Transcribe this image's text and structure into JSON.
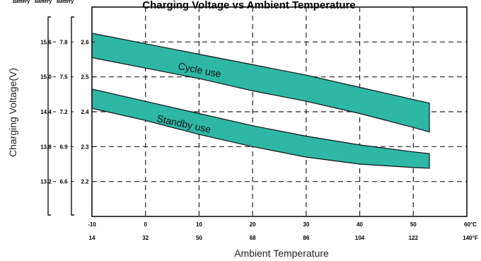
{
  "chart_data": {
    "type": "area",
    "title": "Charging Voltage vs Ambient Temperature",
    "top_left_headers": [
      "Battery",
      "Battery",
      "Battery"
    ],
    "ylabel": "Charging Voltage(V)",
    "xlabel": "Ambient Temperature",
    "x_ticks_celsius": [
      "-10",
      "0",
      "10",
      "20",
      "30",
      "40",
      "50",
      "60°C"
    ],
    "x_ticks_fahrenheit": [
      "14",
      "32",
      "50",
      "68",
      "86",
      "104",
      "122",
      "140°F"
    ],
    "y_ticks_12v": [
      "15.6",
      "15.0",
      "14.4",
      "13.8",
      "13.2"
    ],
    "y_ticks_6v": [
      "7.8",
      "7.5",
      "7.2",
      "6.9",
      "6.6"
    ],
    "y_ticks_cell": [
      "2.6",
      "2.5",
      "2.4",
      "2.3",
      "2.2"
    ],
    "y_tick_values": [
      2.6,
      2.5,
      2.4,
      2.3,
      2.2
    ],
    "xlim": [
      -10,
      60
    ],
    "ylim": [
      2.1,
      2.7
    ],
    "grid": true,
    "band_color": "#2fb7a6",
    "series": [
      {
        "name": "Cycle use",
        "x": [
          -10,
          0,
          10,
          20,
          30,
          40,
          50,
          53
        ],
        "upper": [
          2.625,
          2.595,
          2.565,
          2.535,
          2.505,
          2.47,
          2.435,
          2.425
        ],
        "lower": [
          2.555,
          2.525,
          2.495,
          2.46,
          2.43,
          2.395,
          2.355,
          2.342
        ]
      },
      {
        "name": "Standby use",
        "x": [
          -10,
          0,
          10,
          20,
          30,
          40,
          50,
          53
        ],
        "upper": [
          2.465,
          2.43,
          2.395,
          2.36,
          2.33,
          2.305,
          2.285,
          2.28
        ],
        "lower": [
          2.41,
          2.375,
          2.335,
          2.3,
          2.27,
          2.25,
          2.24,
          2.238
        ]
      }
    ]
  }
}
